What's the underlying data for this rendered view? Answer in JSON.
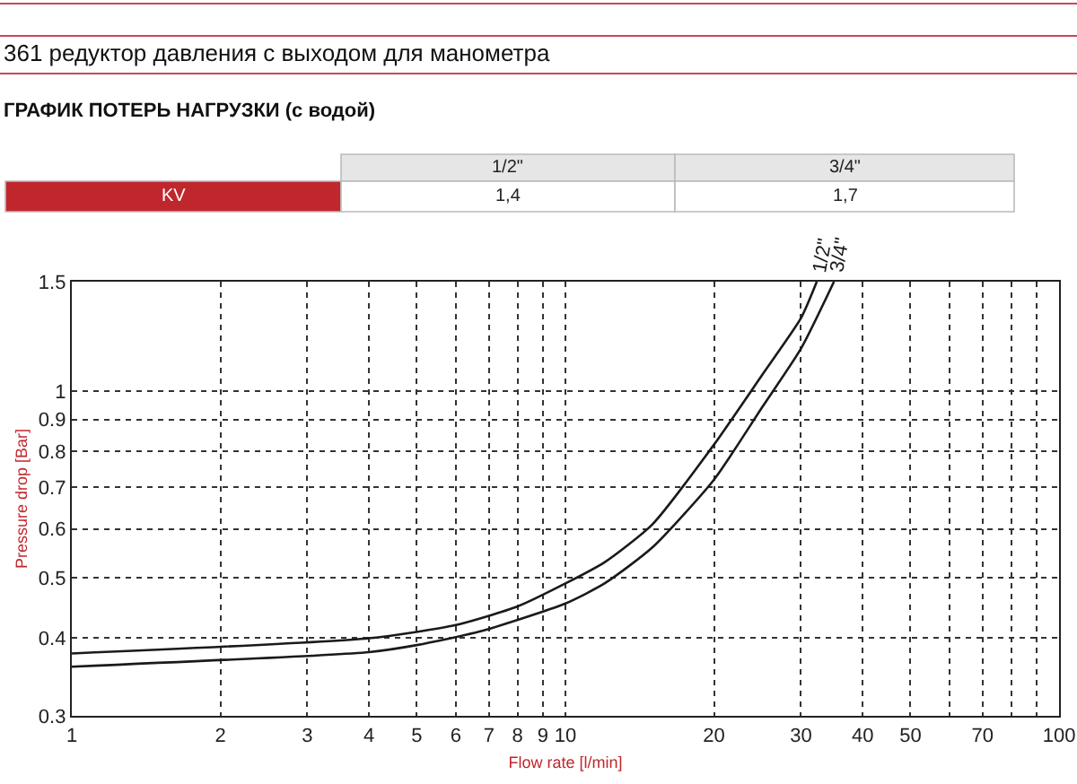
{
  "chart_data": {
    "type": "line",
    "title": "361 редуктор давления с выходом для манометра",
    "subtitle": "ГРАФИК ПОТЕРЬ НАГРУЗКИ (с водой)",
    "xlabel": "Flow rate [l/min]",
    "ylabel": "Pressure drop [Bar]",
    "annotations": [
      "KV",
      "1/2\"",
      "3/4\"",
      "1,4",
      "1,7"
    ],
    "log": "xy",
    "grid": true,
    "marker": "none",
    "line_style": "solid",
    "xlim": [
      1,
      100
    ],
    "ylim": [
      0.3,
      1.5
    ],
    "xticks": [
      1,
      2,
      3,
      4,
      5,
      6,
      7,
      8,
      9,
      10,
      20,
      30,
      40,
      50,
      {
        "value": 60,
        "label": null
      },
      70,
      {
        "value": 80,
        "label": null
      },
      {
        "value": 90,
        "label": null
      },
      100
    ],
    "yticks": [
      0.3,
      0.4,
      0.5,
      0.6,
      0.7,
      0.8,
      0.9,
      1,
      1.5
    ],
    "series": [
      {
        "name": "1/2\"",
        "color": "#1a1a1a",
        "x": [
          1,
          4,
          6,
          8,
          10,
          12,
          15,
          20,
          25,
          30,
          32.3
        ],
        "values": [
          0.378,
          0.4,
          0.42,
          0.45,
          0.49,
          0.53,
          0.61,
          0.82,
          1.06,
          1.31,
          1.5
        ]
      },
      {
        "name": "3/4\"",
        "color": "#1a1a1a",
        "x": [
          1,
          4,
          5,
          6.7,
          10,
          12,
          15,
          20,
          25,
          30,
          35
        ],
        "values": [
          0.36,
          0.38,
          0.39,
          0.41,
          0.455,
          0.49,
          0.56,
          0.72,
          0.94,
          1.17,
          1.5
        ]
      }
    ]
  }
}
